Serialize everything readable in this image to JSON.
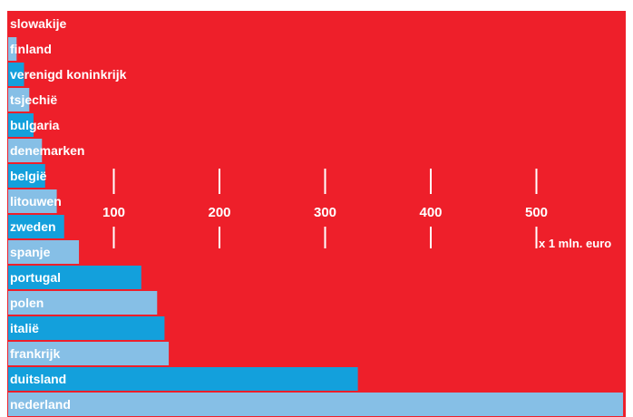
{
  "colors": {
    "background": "#ee1f2a",
    "bar_dark": "#13a0dc",
    "bar_light": "#86bfe6",
    "text": "#ffffff"
  },
  "chart_data": {
    "type": "bar",
    "orientation": "horizontal",
    "categories": [
      "slowakije",
      "finland",
      "verenigd koninkrijk",
      "tsjechië",
      "bulgaria",
      "denemarken",
      "belgië",
      "litouwen",
      "zweden",
      "spanje",
      "portugal",
      "polen",
      "italië",
      "frankrijk",
      "duitsland",
      "nederland"
    ],
    "values": [
      0,
      8,
      15,
      20,
      24,
      32,
      35,
      46,
      53,
      67,
      126,
      141,
      148,
      152,
      331,
      582
    ],
    "bar_colors": [
      "dark",
      "light",
      "dark",
      "light",
      "dark",
      "light",
      "dark",
      "light",
      "dark",
      "light",
      "dark",
      "light",
      "dark",
      "light",
      "dark",
      "light"
    ],
    "ticks": [
      100,
      200,
      300,
      400,
      500
    ],
    "unit_label": "x 1 mln. euro",
    "xlim": [
      0,
      590
    ],
    "grid": false
  }
}
